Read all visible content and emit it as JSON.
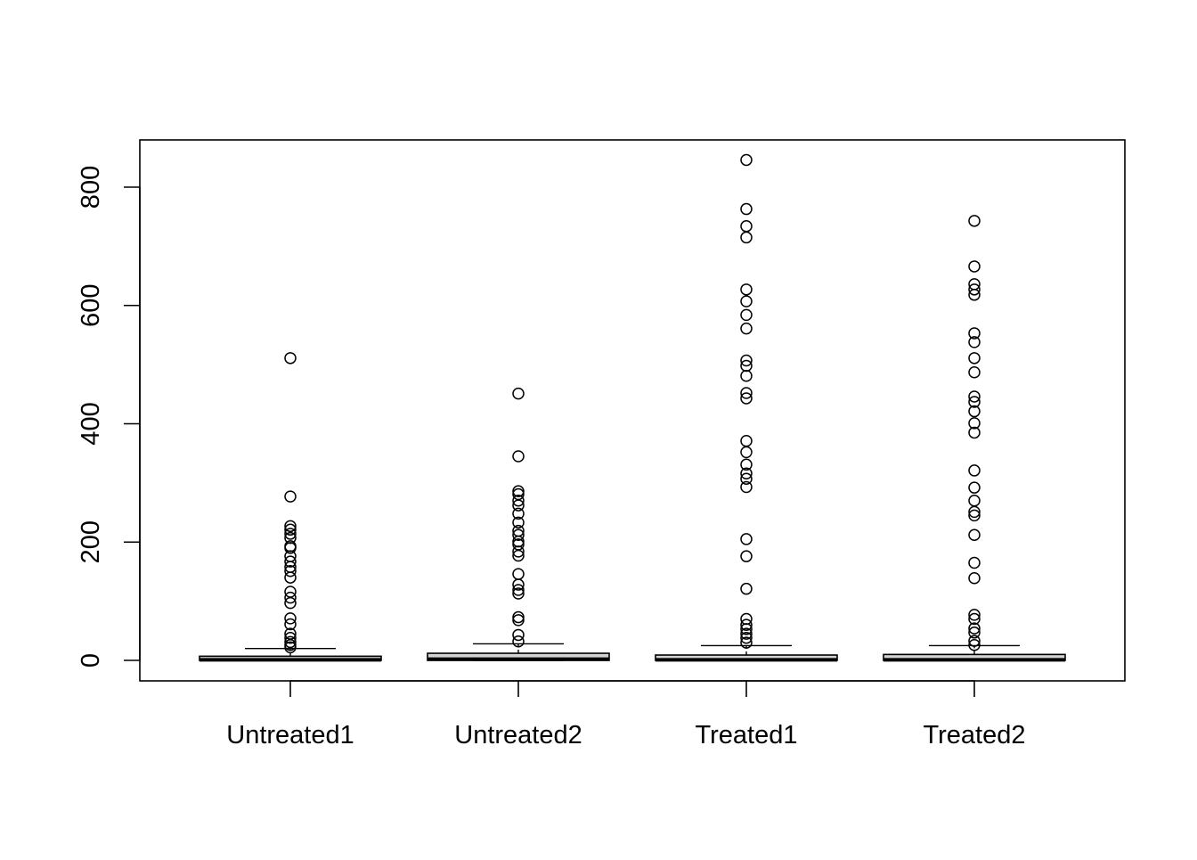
{
  "chart_data": {
    "type": "boxplot",
    "title": "",
    "xlabel": "",
    "ylabel": "",
    "ylim": [
      -35,
      880
    ],
    "yticks": [
      0,
      200,
      400,
      600,
      800
    ],
    "grid": false,
    "categories": [
      "Untreated1",
      "Untreated2",
      "Treated1",
      "Treated2"
    ],
    "boxes": [
      {
        "label": "Untreated1",
        "min": 0,
        "q1": 0,
        "median": 1,
        "q3": 7,
        "max": 20,
        "outliers": [
          511,
          277,
          227,
          221,
          214,
          207,
          193,
          190,
          176,
          167,
          158,
          151,
          140,
          116,
          106,
          97,
          71,
          61,
          45,
          38,
          31,
          26,
          22
        ]
      },
      {
        "label": "Untreated2",
        "min": 0,
        "q1": 0,
        "median": 2,
        "q3": 12,
        "max": 28,
        "outliers": [
          451,
          345,
          286,
          281,
          270,
          262,
          248,
          233,
          219,
          212,
          201,
          196,
          184,
          177,
          146,
          128,
          119,
          113,
          73,
          68,
          43,
          32
        ]
      },
      {
        "label": "Treated1",
        "min": 0,
        "q1": 0,
        "median": 1,
        "q3": 9,
        "max": 25,
        "outliers": [
          846,
          763,
          734,
          715,
          627,
          607,
          584,
          561,
          507,
          498,
          481,
          452,
          443,
          371,
          352,
          331,
          316,
          307,
          293,
          205,
          176,
          121,
          70,
          60,
          53,
          45,
          38,
          30
        ]
      },
      {
        "label": "Treated2",
        "min": 0,
        "q1": 0,
        "median": 1,
        "q3": 10,
        "max": 25,
        "outliers": [
          743,
          666,
          636,
          627,
          618,
          553,
          538,
          511,
          487,
          446,
          437,
          421,
          401,
          385,
          321,
          292,
          270,
          251,
          245,
          212,
          165,
          139,
          77,
          70,
          54,
          47,
          33,
          26
        ]
      }
    ]
  }
}
